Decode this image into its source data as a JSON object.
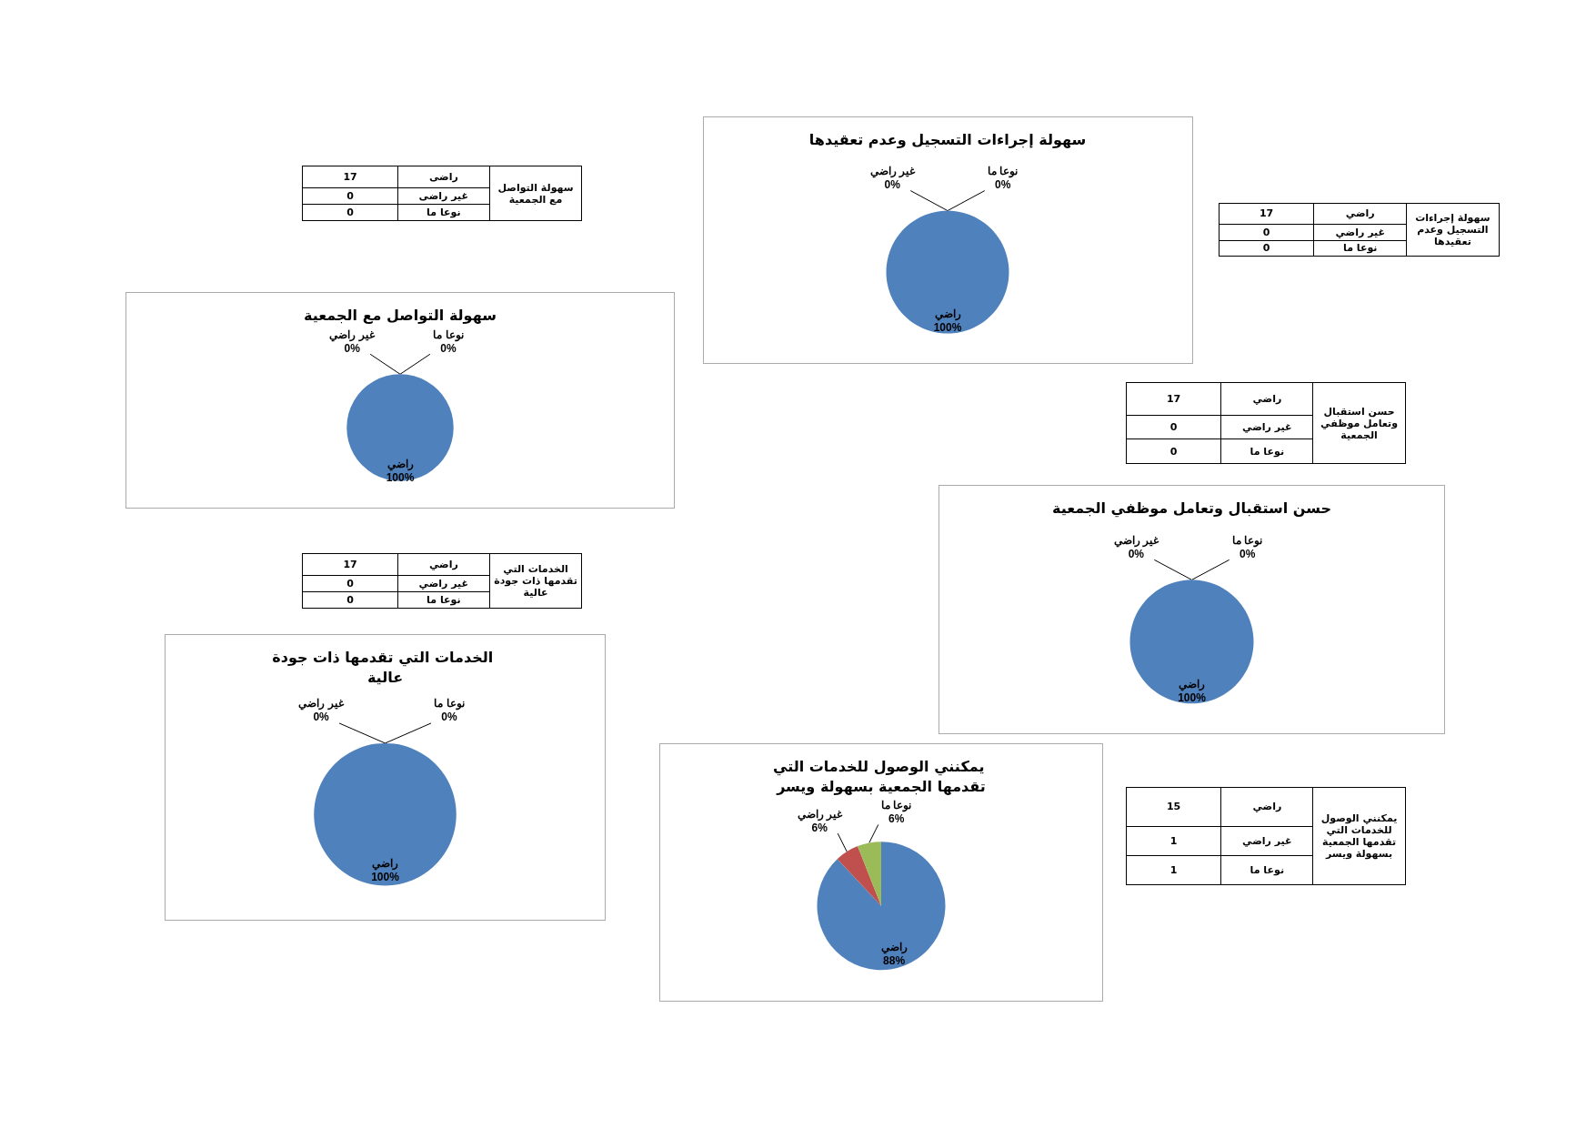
{
  "chart_data": [
    {
      "type": "pie",
      "title": "سهولة إجراءات التسجيل وعدم تعقيدها",
      "categories": [
        "راضي",
        "غير راضي",
        "نوعا ما"
      ],
      "values": [
        100,
        0,
        0
      ],
      "value_labels": [
        "100%",
        "0%",
        "0%"
      ],
      "colors": [
        "#4f81bd",
        "#c0504d",
        "#9bbb59"
      ]
    },
    {
      "type": "other",
      "title": "سهولة التواصل مع الجمعية",
      "categories": [
        "راضى",
        "غير راضى",
        "نوعا ما"
      ],
      "values": [
        17,
        0,
        0
      ],
      "data_labels": true
    },
    {
      "type": "other",
      "title": "سهولة إجراءات التسجيل وعدم تعقيدها",
      "categories": [
        "راضي",
        "غير راضي",
        "نوعا ما"
      ],
      "values": [
        17,
        0,
        0
      ],
      "data_labels": true
    },
    {
      "type": "pie",
      "title": "سهولة التواصل مع الجمعية",
      "categories": [
        "راضي",
        "غير راضي",
        "نوعا ما"
      ],
      "values": [
        100,
        0,
        0
      ],
      "value_labels": [
        "100%",
        "0%",
        "0%"
      ],
      "colors": [
        "#4f81bd",
        "#c0504d",
        "#9bbb59"
      ]
    },
    {
      "type": "other",
      "title": "حسن استقبال وتعامل موظفي الجمعية",
      "categories": [
        "راضي",
        "غير راضي",
        "نوعا ما"
      ],
      "values": [
        17,
        0,
        0
      ],
      "data_labels": true
    },
    {
      "type": "pie",
      "title": "حسن استقبال وتعامل موظفي الجمعية",
      "categories": [
        "راضي",
        "غير راضي",
        "نوعا ما"
      ],
      "values": [
        100,
        0,
        0
      ],
      "value_labels": [
        "100%",
        "0%",
        "0%"
      ],
      "colors": [
        "#4f81bd",
        "#c0504d",
        "#9bbb59"
      ]
    },
    {
      "type": "other",
      "title": "الخدمات التي تقدمها ذات جودة عالية",
      "categories": [
        "راضي",
        "غير راضي",
        "نوعا ما"
      ],
      "values": [
        17,
        0,
        0
      ],
      "data_labels": true
    },
    {
      "type": "pie",
      "title": "الخدمات التي تقدمها ذات جودة عالية",
      "categories": [
        "راضي",
        "غير راضي",
        "نوعا ما"
      ],
      "values": [
        100,
        0,
        0
      ],
      "value_labels": [
        "100%",
        "0%",
        "0%"
      ],
      "colors": [
        "#4f81bd",
        "#c0504d",
        "#9bbb59"
      ]
    },
    {
      "type": "pie",
      "title": "يمكنني الوصول للخدمات التي تقدمها الجمعية بسهولة ويسر",
      "categories": [
        "راضي",
        "غير راضي",
        "نوعا ما"
      ],
      "values": [
        88,
        6,
        6
      ],
      "value_labels": [
        "88%",
        "6%",
        "6%"
      ],
      "colors": [
        "#4f81bd",
        "#c0504d",
        "#9bbb59"
      ]
    },
    {
      "type": "other",
      "title": "يمكنني الوصول للخدمات التي تقدمها الجمعية بسهولة ويسر",
      "categories": [
        "راضي",
        "غير راضي",
        "نوعا ما"
      ],
      "values": [
        15,
        1,
        1
      ],
      "data_labels": true
    }
  ]
}
